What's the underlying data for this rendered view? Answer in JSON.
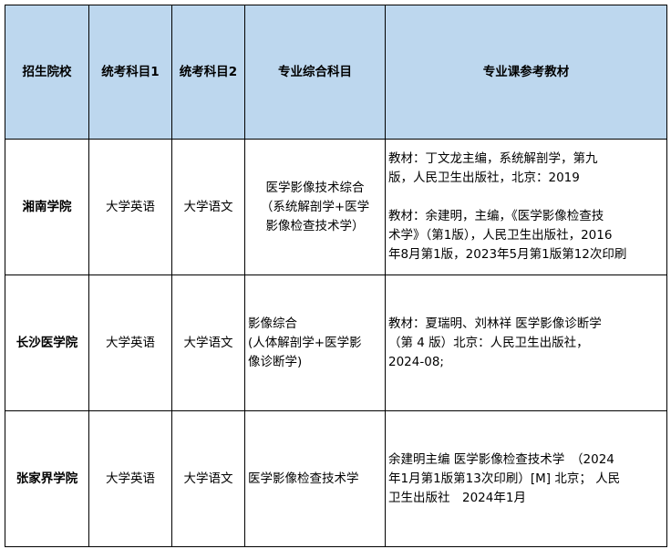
{
  "header": [
    "招生院校",
    "统考科目1",
    "统考科目2",
    "专业综合科目",
    "专业课参考教材"
  ],
  "rows": [
    {
      "school": "湘南学院",
      "exam1": "大学英语",
      "exam2": "大学语文",
      "comprehensive": [
        "医学影像技术综合",
        "（系统解剖学+医学",
        "影像检查技术学）"
      ],
      "textbooks_p1": [
        "教材：丁文龙主编，系统解剖学，第九",
        "版，人民卫生出版社，北京：2019"
      ],
      "textbooks_p2": [
        "教材：余建明，主编，《医学影像检查技",
        "术学》（第1版），人民卫生出版社，2016",
        "年8月第1版，2023年5月第1版第12次印刷"
      ]
    },
    {
      "school": "长沙医学院",
      "exam1": "大学英语",
      "exam2": "大学语文",
      "comprehensive": [
        "影像综合",
        "(人体解剖学+医学影",
        "像诊断学)"
      ],
      "textbooks_p1": [
        "教材：夏瑞明、刘林祥 医学影像诊断学",
        "（第 4 版）北京：人民卫生出版社，",
        "2024-08;"
      ]
    },
    {
      "school": "张家界学院",
      "exam1": "大学英语",
      "exam2": "大学语文",
      "comprehensive": [
        "医学影像检查技术学"
      ],
      "textbooks_p1": [
        "余建明主编 医学影像检查技术学　（2024",
        "年1月第1版第13次印刷）[M] 北京；  人民",
        "卫生出版社　2024年1月"
      ]
    }
  ]
}
